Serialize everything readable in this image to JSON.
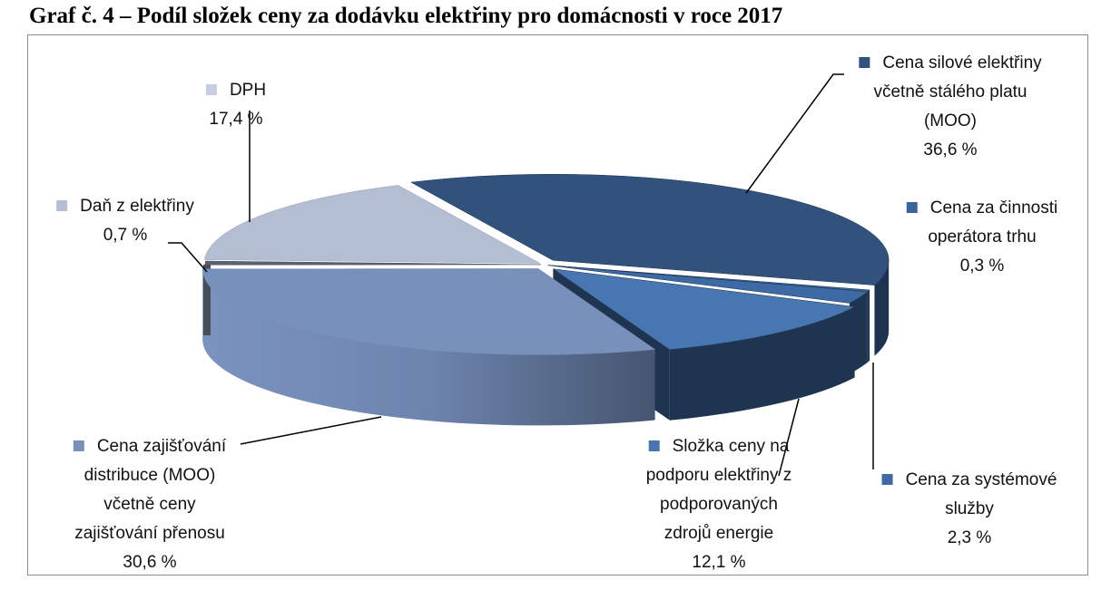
{
  "chart_data": {
    "type": "pie",
    "title": "Graf č. 4 – Podíl složek ceny za dodávku elektřiny pro domácnosti v roce 2017",
    "style": "3d-exploded",
    "slices": [
      {
        "lines": [
          "Cena silové elektřiny",
          "včetně stálého platu",
          "(MOO)"
        ],
        "value": 36.6,
        "value_label": "36,6 %",
        "color": "#31527c",
        "side_color": "#1e3350"
      },
      {
        "lines": [
          "Cena za činnosti",
          "operátora trhu"
        ],
        "value": 0.3,
        "value_label": "0,3 %",
        "color": "#3a64a0",
        "side_color": "#1e3350"
      },
      {
        "lines": [
          "Cena za systémové",
          "služby"
        ],
        "value": 2.3,
        "value_label": "2,3 %",
        "color": "#3d69a5",
        "side_color": "#1f3450"
      },
      {
        "lines": [
          "Složka ceny na",
          "podporu elektřiny z",
          "podporovaných",
          "zdrojů energie"
        ],
        "value": 12.1,
        "value_label": "12,1 %",
        "color": "#4776b0",
        "side_color": "#1f3450"
      },
      {
        "lines": [
          "Cena zajišťování",
          "distribuce (MOO)",
          "včetně ceny",
          "zajišťování přenosu"
        ],
        "value": 30.6,
        "value_label": "30,6 %",
        "color": "#7891bb",
        "side_color": "#6f88b2"
      },
      {
        "lines": [
          "Daň z elektřiny"
        ],
        "value": 0.7,
        "value_label": "0,7 %",
        "color": "#5b6272",
        "side_color": "#474d5a"
      },
      {
        "lines": [
          "DPH"
        ],
        "value": 17.4,
        "value_label": "17,4 %",
        "color": "#b4bed3",
        "side_color": "#9aa4b8"
      }
    ]
  }
}
